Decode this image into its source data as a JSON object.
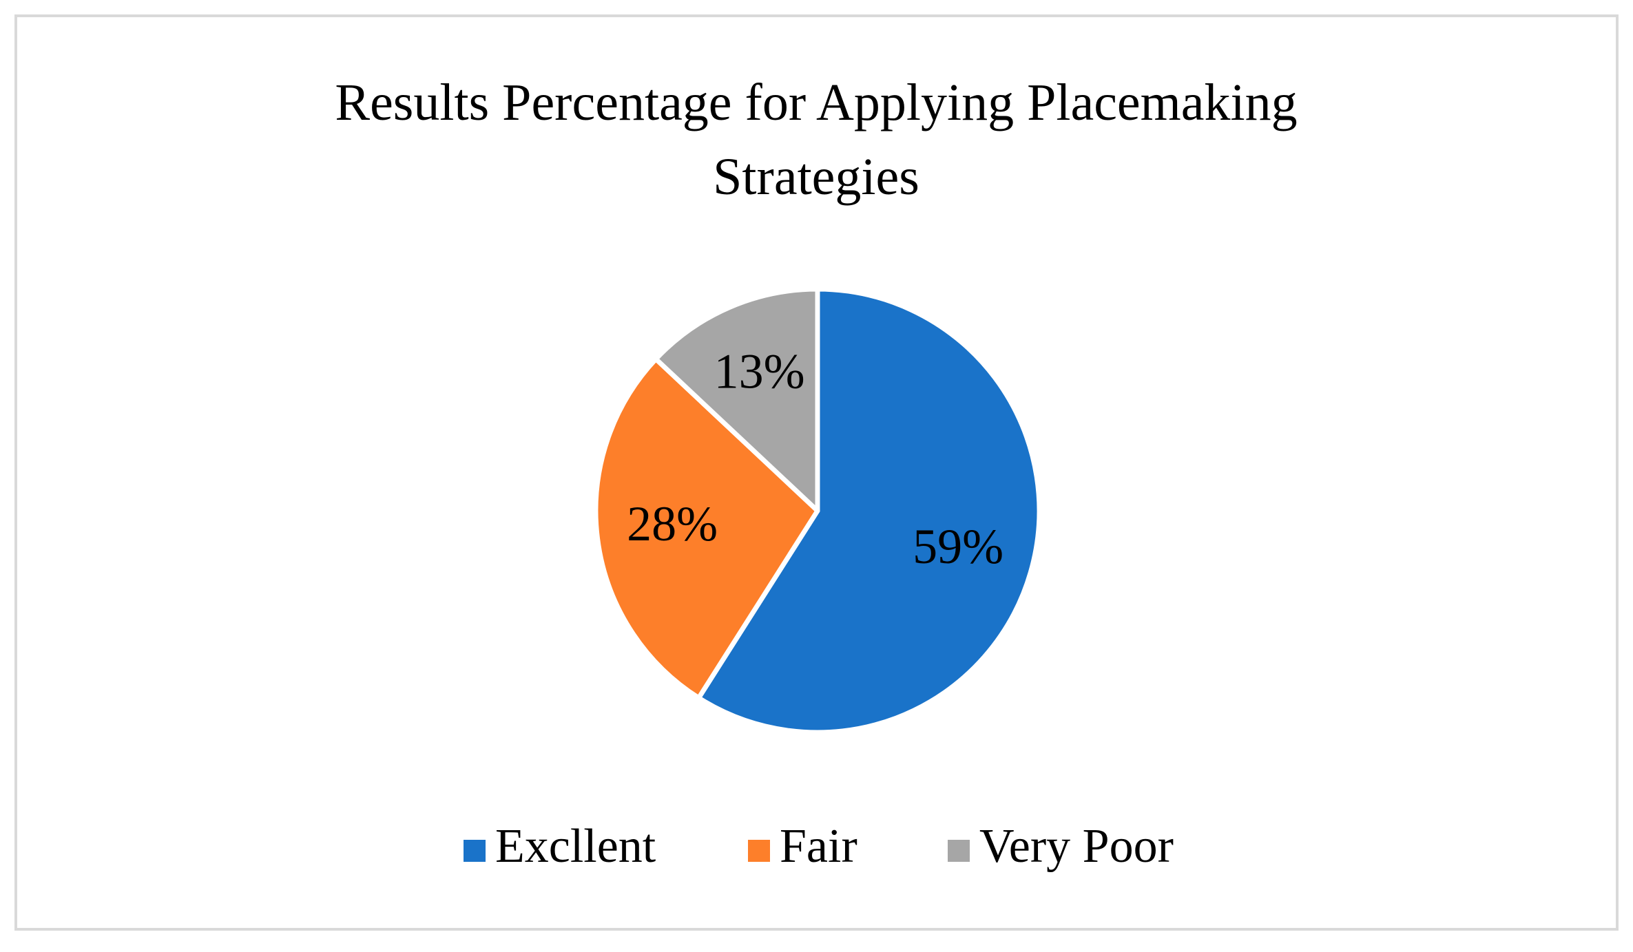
{
  "chart_data": {
    "type": "pie",
    "title": "Results Percentage for Applying Placemaking Strategies",
    "categories": [
      "Excllent",
      "Fair",
      "Very Poor"
    ],
    "values": [
      59,
      28,
      13
    ],
    "value_labels": [
      "59%",
      "28%",
      "13%"
    ],
    "colors": [
      "#1a73c9",
      "#fd7f2a",
      "#a6a6a6"
    ],
    "legend": "bottom"
  }
}
